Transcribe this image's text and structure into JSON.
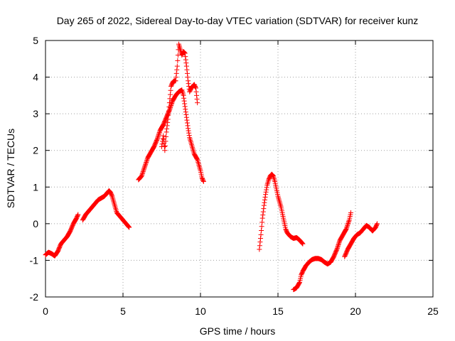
{
  "chart_data": {
    "type": "scatter",
    "title": "Day 265 of 2022, Sidereal Day-to-day VTEC variation (SDTVAR) for receiver kunz",
    "xlabel": "GPS time / hours",
    "ylabel": "SDTVAR / TECUs",
    "xlim": [
      0,
      25
    ],
    "ylim": [
      -2,
      5
    ],
    "xticks": [
      0,
      5,
      10,
      15,
      20,
      25
    ],
    "yticks": [
      -2,
      -1,
      0,
      1,
      2,
      3,
      4,
      5
    ],
    "grid": true,
    "marker": "+",
    "color": "#ff0000",
    "segments": [
      [
        [
          0,
          -0.85
        ],
        [
          0.2,
          -0.78
        ],
        [
          0.4,
          -0.82
        ],
        [
          0.6,
          -0.88
        ],
        [
          0.8,
          -0.75
        ],
        [
          1.0,
          -0.55
        ],
        [
          1.2,
          -0.45
        ],
        [
          1.4,
          -0.35
        ],
        [
          1.6,
          -0.2
        ],
        [
          1.8,
          0.0
        ],
        [
          2.0,
          0.15
        ],
        [
          2.1,
          0.25
        ]
      ],
      [
        [
          2.4,
          0.1
        ],
        [
          2.6,
          0.25
        ],
        [
          2.8,
          0.35
        ],
        [
          3.0,
          0.45
        ],
        [
          3.2,
          0.55
        ],
        [
          3.4,
          0.65
        ],
        [
          3.6,
          0.7
        ],
        [
          3.8,
          0.75
        ],
        [
          4.0,
          0.85
        ],
        [
          4.1,
          0.9
        ],
        [
          4.2,
          0.85
        ],
        [
          4.3,
          0.75
        ],
        [
          4.4,
          0.6
        ],
        [
          4.5,
          0.45
        ],
        [
          4.6,
          0.3
        ],
        [
          4.8,
          0.2
        ],
        [
          5.0,
          0.1
        ],
        [
          5.2,
          0.0
        ],
        [
          5.4,
          -0.1
        ]
      ],
      [
        [
          6.0,
          1.2
        ],
        [
          6.2,
          1.3
        ],
        [
          6.4,
          1.55
        ],
        [
          6.6,
          1.8
        ],
        [
          6.8,
          1.95
        ],
        [
          7.0,
          2.1
        ],
        [
          7.2,
          2.3
        ],
        [
          7.4,
          2.55
        ],
        [
          7.6,
          2.7
        ],
        [
          7.8,
          2.9
        ],
        [
          8.0,
          3.1
        ],
        [
          8.2,
          3.35
        ],
        [
          8.4,
          3.5
        ],
        [
          8.6,
          3.6
        ],
        [
          8.8,
          3.65
        ],
        [
          8.9,
          3.5
        ],
        [
          9.0,
          3.2
        ],
        [
          9.1,
          2.9
        ],
        [
          9.2,
          2.6
        ],
        [
          9.3,
          2.35
        ],
        [
          9.4,
          2.2
        ],
        [
          9.5,
          2.05
        ],
        [
          9.6,
          1.9
        ],
        [
          9.8,
          1.75
        ],
        [
          10.0,
          1.45
        ],
        [
          10.1,
          1.25
        ],
        [
          10.2,
          1.15
        ]
      ],
      [
        [
          7.5,
          2.1
        ],
        [
          7.6,
          2.4
        ],
        [
          7.7,
          2.0
        ],
        [
          7.8,
          2.5
        ],
        [
          7.9,
          2.85
        ],
        [
          8.0,
          3.3
        ],
        [
          8.1,
          3.75
        ],
        [
          8.2,
          3.85
        ],
        [
          8.3,
          3.9
        ],
        [
          8.4,
          3.9
        ],
        [
          8.5,
          4.3
        ],
        [
          8.6,
          4.9
        ],
        [
          8.7,
          4.75
        ],
        [
          8.8,
          4.6
        ],
        [
          8.9,
          4.7
        ],
        [
          9.0,
          4.65
        ],
        [
          9.1,
          4.3
        ],
        [
          9.2,
          3.9
        ],
        [
          9.3,
          3.6
        ],
        [
          9.4,
          3.7
        ],
        [
          9.5,
          3.75
        ],
        [
          9.6,
          3.8
        ],
        [
          9.7,
          3.7
        ],
        [
          9.8,
          3.3
        ]
      ],
      [
        [
          13.8,
          -0.7
        ],
        [
          13.9,
          -0.3
        ],
        [
          14.0,
          0.15
        ],
        [
          14.1,
          0.5
        ],
        [
          14.2,
          0.8
        ],
        [
          14.3,
          1.05
        ],
        [
          14.4,
          1.2
        ],
        [
          14.5,
          1.3
        ],
        [
          14.6,
          1.35
        ],
        [
          14.7,
          1.3
        ],
        [
          14.8,
          1.15
        ],
        [
          14.9,
          0.95
        ],
        [
          15.0,
          0.75
        ],
        [
          15.1,
          0.6
        ],
        [
          15.2,
          0.45
        ],
        [
          15.3,
          0.25
        ],
        [
          15.4,
          0.05
        ],
        [
          15.5,
          -0.15
        ],
        [
          15.6,
          -0.25
        ],
        [
          15.8,
          -0.35
        ],
        [
          16.0,
          -0.4
        ],
        [
          16.2,
          -0.38
        ],
        [
          16.4,
          -0.45
        ],
        [
          16.6,
          -0.55
        ]
      ],
      [
        [
          16.0,
          -1.8
        ],
        [
          16.2,
          -1.75
        ],
        [
          16.4,
          -1.6
        ],
        [
          16.5,
          -1.4
        ],
        [
          16.6,
          -1.3
        ],
        [
          16.8,
          -1.15
        ],
        [
          17.0,
          -1.05
        ],
        [
          17.2,
          -0.98
        ],
        [
          17.4,
          -0.95
        ],
        [
          17.6,
          -0.95
        ],
        [
          17.8,
          -0.98
        ],
        [
          18.0,
          -1.05
        ],
        [
          18.2,
          -1.1
        ],
        [
          18.4,
          -1.05
        ],
        [
          18.6,
          -0.9
        ],
        [
          18.8,
          -0.7
        ],
        [
          19.0,
          -0.45
        ],
        [
          19.2,
          -0.3
        ],
        [
          19.4,
          -0.15
        ],
        [
          19.6,
          0.1
        ],
        [
          19.7,
          0.3
        ]
      ],
      [
        [
          19.3,
          -0.9
        ],
        [
          19.5,
          -0.7
        ],
        [
          19.7,
          -0.55
        ],
        [
          19.9,
          -0.4
        ],
        [
          20.1,
          -0.3
        ],
        [
          20.3,
          -0.25
        ],
        [
          20.5,
          -0.15
        ],
        [
          20.7,
          -0.05
        ],
        [
          20.9,
          -0.1
        ],
        [
          21.1,
          -0.2
        ],
        [
          21.3,
          -0.1
        ],
        [
          21.4,
          0.0
        ]
      ]
    ]
  }
}
